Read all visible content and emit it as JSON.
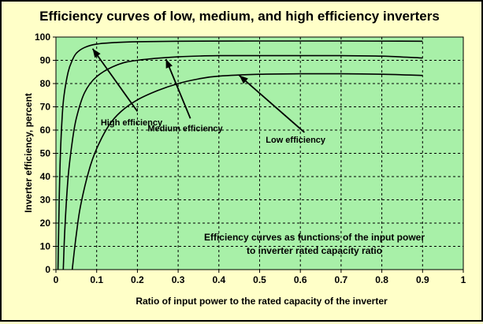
{
  "chart_data": {
    "type": "line",
    "title": "Efficiency curves of low, medium, and high efficiency inverters",
    "xlabel": "Ratio of input power to the rated capacity of the inverter",
    "ylabel": "Inverter efficiency, percent",
    "xlim": [
      0,
      1
    ],
    "ylim": [
      0,
      100
    ],
    "x_ticks": [
      "0",
      "0.1",
      "0.2",
      "0.3",
      "0.4",
      "0.5",
      "0.6",
      "0.7",
      "0.8",
      "0.9",
      "1"
    ],
    "y_ticks": [
      "0",
      "10",
      "20",
      "30",
      "40",
      "50",
      "60",
      "70",
      "80",
      "90",
      "100"
    ],
    "grid": true,
    "plot_background": "#a8f0a8",
    "page_background": "#ffffc8",
    "line_color": "#000000",
    "series": [
      {
        "name": "High efficiency",
        "x": [
          0.005,
          0.007,
          0.01,
          0.015,
          0.02,
          0.03,
          0.04,
          0.05,
          0.07,
          0.1,
          0.15,
          0.2,
          0.3,
          0.5,
          0.7,
          0.9
        ],
        "y": [
          0,
          20,
          45,
          65,
          75,
          85,
          90,
          93,
          95.5,
          97,
          97.7,
          98,
          98.2,
          98.3,
          98.3,
          98.2
        ]
      },
      {
        "name": "Medium efficiency",
        "x": [
          0.018,
          0.022,
          0.03,
          0.04,
          0.05,
          0.07,
          0.1,
          0.15,
          0.2,
          0.3,
          0.4,
          0.5,
          0.6,
          0.7,
          0.8,
          0.9
        ],
        "y": [
          0,
          18,
          40,
          55,
          65,
          76,
          83,
          88,
          90,
          91.5,
          92,
          92,
          92,
          92,
          91.8,
          91
        ]
      },
      {
        "name": "Low efficiency",
        "x": [
          0.04,
          0.05,
          0.06,
          0.08,
          0.1,
          0.13,
          0.16,
          0.2,
          0.25,
          0.3,
          0.35,
          0.4,
          0.5,
          0.6,
          0.7,
          0.8,
          0.9
        ],
        "y": [
          0,
          15,
          27,
          42,
          52,
          62,
          68,
          73,
          77,
          80,
          82,
          83.2,
          84,
          84.2,
          84.2,
          84,
          83.5
        ]
      }
    ],
    "annotations": [
      {
        "text": "High efficiency",
        "label_at": [
          0.11,
          62
        ],
        "arrow_from": [
          0.2,
          68
        ],
        "arrow_to": [
          0.09,
          95
        ]
      },
      {
        "text": "Medium efficiency",
        "label_at": [
          0.225,
          59.5
        ],
        "arrow_from": [
          0.33,
          65
        ],
        "arrow_to": [
          0.27,
          90.5
        ]
      },
      {
        "text": "Low efficiency",
        "label_at": [
          0.515,
          54.5
        ],
        "arrow_from": [
          0.61,
          59
        ],
        "arrow_to": [
          0.45,
          83.5
        ]
      }
    ],
    "note": [
      "Efficiency curves as functions of the input power",
      "to inverter rated capacity ratio"
    ]
  }
}
